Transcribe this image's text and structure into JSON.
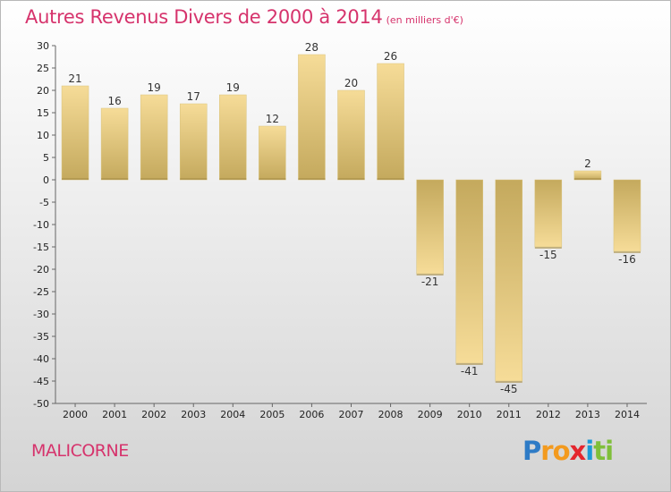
{
  "header": {
    "title": "Autres Revenus Divers de 2000 à 2014",
    "subtitle": "(en milliers d'€)"
  },
  "footer": {
    "town": "MALICORNE",
    "brand_letters": [
      {
        "ch": "P",
        "color": "#2e7bc6"
      },
      {
        "ch": "r",
        "color": "#f39a1e"
      },
      {
        "ch": "o",
        "color": "#f39a1e"
      },
      {
        "ch": "x",
        "color": "#e4262e"
      },
      {
        "ch": "i",
        "color": "#1c9ad6"
      },
      {
        "ch": "t",
        "color": "#7fbf3a"
      },
      {
        "ch": "i",
        "color": "#7fbf3a"
      }
    ]
  },
  "chart_data": {
    "type": "bar",
    "categories": [
      "2000",
      "2001",
      "2002",
      "2003",
      "2004",
      "2005",
      "2006",
      "2007",
      "2008",
      "2009",
      "2010",
      "2011",
      "2012",
      "2013",
      "2014"
    ],
    "values": [
      21,
      16,
      19,
      17,
      19,
      12,
      28,
      20,
      26,
      -21,
      -41,
      -45,
      -15,
      2,
      -16
    ],
    "data_labels": [
      "21",
      "16",
      "19",
      "17",
      "19",
      "12",
      "28",
      "20",
      "26",
      "-21",
      "-41",
      "-45",
      "-15",
      "2",
      "-16"
    ],
    "ylim": [
      -50,
      30
    ],
    "yticks": [
      30,
      25,
      20,
      15,
      10,
      5,
      0,
      -5,
      -10,
      -15,
      -20,
      -25,
      -30,
      -35,
      -40,
      -45,
      -50
    ],
    "ytick_labels": [
      "30",
      "25",
      "20",
      "15",
      "10",
      "5",
      "0",
      "-5",
      "-10",
      "-15",
      "-20",
      "-25",
      "-30",
      "-35",
      "-40",
      "-45",
      "-50"
    ],
    "bar_color_light": "#f6dc98",
    "bar_color_dark": "#c4a95d",
    "grid": false
  }
}
